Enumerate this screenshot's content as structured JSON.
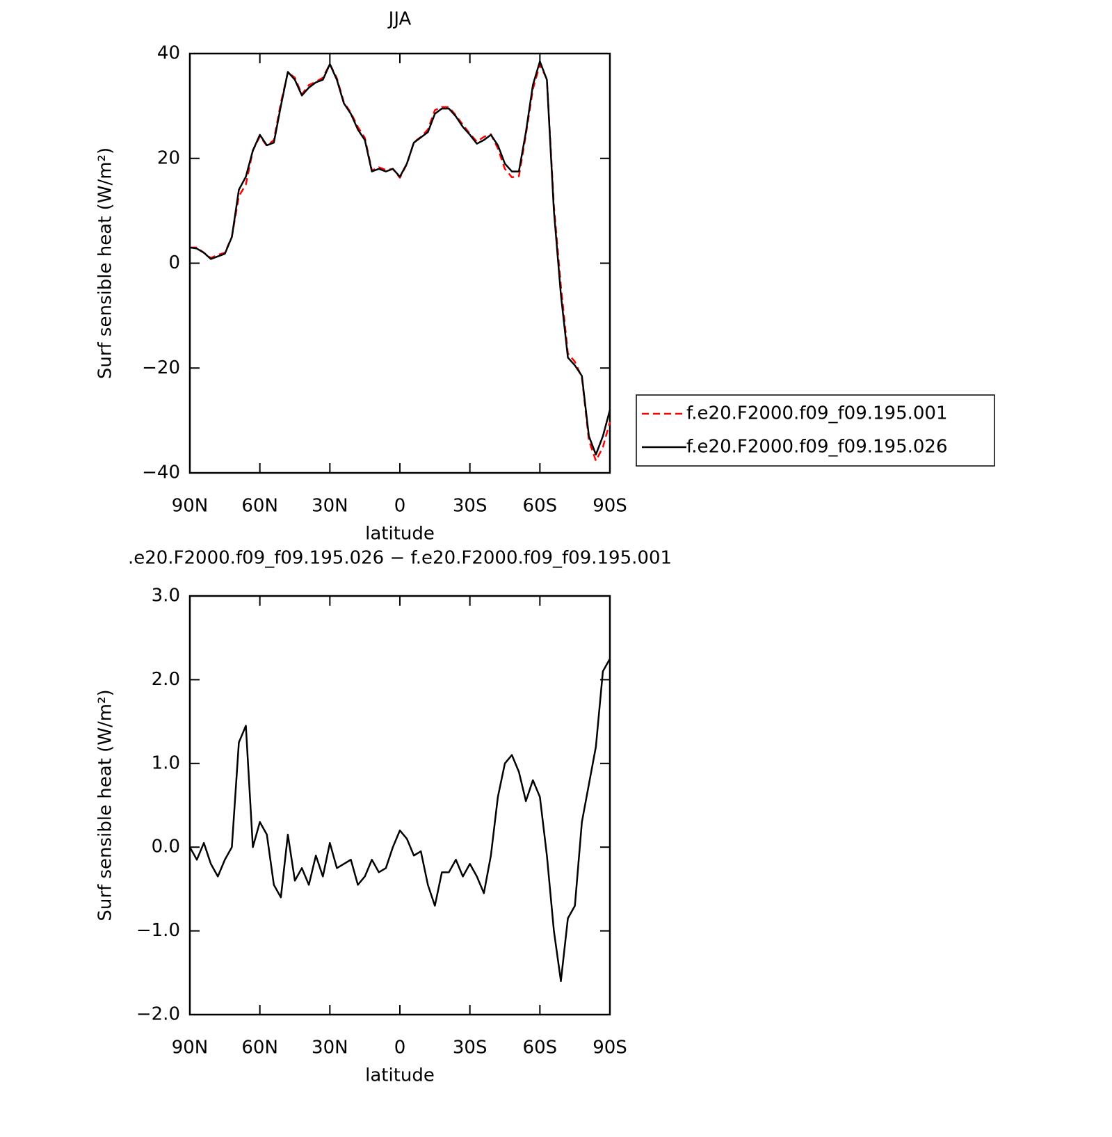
{
  "chart_data": [
    {
      "type": "line",
      "title": "JJA",
      "xlabel": "latitude",
      "ylabel": "Surf sensible heat (W/m²)",
      "x": [
        90,
        87,
        84,
        81,
        78,
        75,
        72,
        69,
        66,
        63,
        60,
        57,
        54,
        51,
        48,
        45,
        42,
        39,
        36,
        33,
        30,
        27,
        24,
        21,
        18,
        15,
        12,
        9,
        6,
        3,
        0,
        -3,
        -6,
        -9,
        -12,
        -15,
        -18,
        -21,
        -24,
        -27,
        -30,
        -33,
        -36,
        -39,
        -42,
        -45,
        -48,
        -51,
        -54,
        -57,
        -60,
        -63,
        -66,
        -69,
        -72,
        -75,
        -78,
        -81,
        -84,
        -87,
        -90
      ],
      "series": [
        {
          "name": "f.e20.F2000.f09_f09.195.001",
          "color": "#ff0000",
          "dash": "dashed",
          "values": [
            3.0,
            3.0,
            2.0,
            1.0,
            1.6,
            2.0,
            5.0,
            12.8,
            15.0,
            21.5,
            24.2,
            22.4,
            23.5,
            30.6,
            36.4,
            35.4,
            32.2,
            34.0,
            34.6,
            35.4,
            38.0,
            35.3,
            30.7,
            28.7,
            26.0,
            23.9,
            17.7,
            18.3,
            17.8,
            18.0,
            16.3,
            18.9,
            23.1,
            24.1,
            25.5,
            29.2,
            29.8,
            29.8,
            28.2,
            26.4,
            24.7,
            23.2,
            24.1,
            24.6,
            21.9,
            18.0,
            16.4,
            16.6,
            24.5,
            33.2,
            37.9,
            35.1,
            11.0,
            -4.4,
            -17.2,
            -18.8,
            -21.8,
            -33.8,
            -37.7,
            -35.1,
            -30.3
          ]
        },
        {
          "name": "f.e20.F2000.f09_f09.195.026",
          "color": "#000000",
          "dash": "solid",
          "values": [
            3.0,
            2.8,
            2.0,
            0.8,
            1.3,
            1.8,
            5.0,
            14.0,
            16.5,
            21.5,
            24.5,
            22.5,
            23.0,
            30.0,
            36.5,
            35.0,
            32.0,
            33.5,
            34.5,
            35.0,
            38.0,
            35.0,
            30.5,
            28.5,
            25.5,
            23.5,
            17.5,
            18.0,
            17.5,
            18.0,
            16.5,
            19.0,
            23.0,
            24.0,
            25.0,
            28.5,
            29.5,
            29.5,
            28.0,
            26.0,
            24.5,
            22.8,
            23.5,
            24.5,
            22.5,
            19.0,
            17.5,
            17.5,
            25.0,
            34.0,
            38.5,
            35.0,
            10.0,
            -6.0,
            -18.0,
            -19.5,
            -21.5,
            -33.0,
            -36.5,
            -33.0,
            -28.0
          ]
        }
      ],
      "xlim": [
        90,
        -90
      ],
      "xticks": [
        {
          "value": 90,
          "label": "90N"
        },
        {
          "value": 60,
          "label": "60N"
        },
        {
          "value": 30,
          "label": "30N"
        },
        0,
        {
          "value": -30,
          "label": "30S"
        },
        {
          "value": -60,
          "label": "60S"
        },
        {
          "value": -90,
          "label": "90S"
        }
      ],
      "ylim": [
        -40,
        40
      ],
      "yticks": [
        {
          "value": -40,
          "label": "−40"
        },
        {
          "value": -20,
          "label": "−20"
        },
        0,
        20,
        40
      ],
      "legend": "right"
    },
    {
      "type": "line",
      "title": ".e20.F2000.f09_f09.195.026 − f.e20.F2000.f09_f09.195.001",
      "xlabel": "latitude",
      "ylabel": "Surf sensible heat (W/m²)",
      "x": [
        90,
        87,
        84,
        81,
        78,
        75,
        72,
        69,
        66,
        63,
        60,
        57,
        54,
        51,
        48,
        45,
        42,
        39,
        36,
        33,
        30,
        27,
        24,
        21,
        18,
        15,
        12,
        9,
        6,
        3,
        0,
        -3,
        -6,
        -9,
        -12,
        -15,
        -18,
        -21,
        -24,
        -27,
        -30,
        -33,
        -36,
        -39,
        -42,
        -45,
        -48,
        -51,
        -54,
        -57,
        -60,
        -63,
        -66,
        -69,
        -72,
        -75,
        -78,
        -81,
        -84,
        -87,
        -90
      ],
      "values": [
        0.0,
        -0.15,
        0.05,
        -0.2,
        -0.35,
        -0.15,
        0.0,
        1.25,
        1.45,
        0.0,
        0.3,
        0.15,
        -0.45,
        -0.6,
        0.15,
        -0.4,
        -0.25,
        -0.45,
        -0.1,
        -0.35,
        0.05,
        -0.25,
        -0.2,
        -0.15,
        -0.45,
        -0.35,
        -0.15,
        -0.3,
        -0.25,
        0.0,
        0.2,
        0.1,
        -0.1,
        -0.05,
        -0.45,
        -0.7,
        -0.3,
        -0.3,
        -0.15,
        -0.35,
        -0.2,
        -0.35,
        -0.55,
        -0.1,
        0.6,
        1.0,
        1.1,
        0.9,
        0.55,
        0.8,
        0.6,
        -0.1,
        -1.0,
        -1.6,
        -0.85,
        -0.7,
        0.3,
        0.75,
        1.2,
        2.1,
        2.25
      ],
      "color": "#000000",
      "xlim": [
        90,
        -90
      ],
      "xticks": [
        {
          "value": 90,
          "label": "90N"
        },
        {
          "value": 60,
          "label": "60N"
        },
        {
          "value": 30,
          "label": "30N"
        },
        0,
        {
          "value": -30,
          "label": "30S"
        },
        {
          "value": -60,
          "label": "60S"
        },
        {
          "value": -90,
          "label": "90S"
        }
      ],
      "ylim": [
        -2,
        3
      ],
      "yticks": [
        {
          "value": -2,
          "label": "−2.0"
        },
        {
          "value": -1,
          "label": "−1.0"
        },
        {
          "value": 0,
          "label": "0.0"
        },
        {
          "value": 1,
          "label": "1.0"
        },
        {
          "value": 2,
          "label": "2.0"
        },
        {
          "value": 3,
          "label": "3.0"
        }
      ]
    }
  ]
}
